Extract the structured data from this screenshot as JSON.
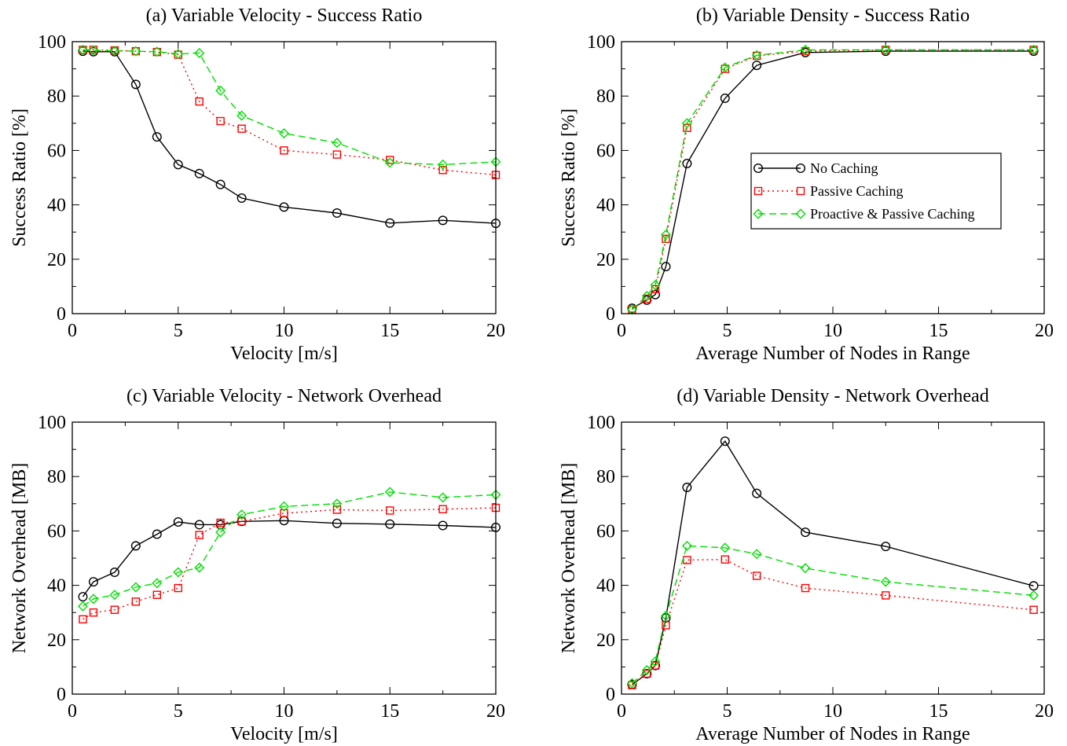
{
  "series_styles": [
    {
      "color": "#000000",
      "dash": "",
      "marker": "circle"
    },
    {
      "color": "#ff0000",
      "dash": "2,4",
      "marker": "square"
    },
    {
      "color": "#00dd00",
      "dash": "9,5",
      "marker": "diamond"
    }
  ],
  "chart_data": [
    {
      "id": "a",
      "type": "line",
      "title": "(a) Variable Velocity - Success Ratio",
      "xlabel": "Velocity [m/s]",
      "ylabel": "Success Ratio [%]",
      "xlim": [
        0,
        20
      ],
      "ylim": [
        0,
        100
      ],
      "xticks": [
        0,
        5,
        10,
        15,
        20
      ],
      "yticks": [
        0,
        20,
        40,
        60,
        80,
        100
      ],
      "grid": false,
      "legend": null,
      "series": [
        {
          "x": [
            0.5,
            1,
            2,
            3,
            4,
            5,
            6,
            7,
            8,
            10,
            12.5,
            15,
            17.5,
            20
          ],
          "values": [
            96.5,
            96.3,
            96.3,
            84.3,
            65,
            54.8,
            51.5,
            47.5,
            42.5,
            39.2,
            37,
            33.3,
            34.3,
            33.2
          ]
        },
        {
          "x": [
            0.5,
            1,
            2,
            3,
            4,
            5,
            6,
            7,
            8,
            10,
            12.5,
            15,
            17.5,
            20
          ],
          "values": [
            97,
            97,
            96.8,
            96.5,
            96.2,
            95.2,
            78,
            70.8,
            68,
            60,
            58.5,
            56.5,
            52.8,
            51
          ]
        },
        {
          "x": [
            0.5,
            1,
            2,
            3,
            4,
            5,
            6,
            7,
            8,
            10,
            12.5,
            15,
            17.5,
            20
          ],
          "values": [
            97,
            96.8,
            96.6,
            96.5,
            96.3,
            95.5,
            95.8,
            82,
            72.8,
            66.3,
            62.8,
            55.5,
            54.8,
            55.8
          ]
        }
      ]
    },
    {
      "id": "b",
      "type": "line",
      "title": "(b) Variable Density - Success Ratio",
      "xlabel": "Average Number of Nodes in Range",
      "ylabel": "Success Ratio [%]",
      "xlim": [
        0,
        20
      ],
      "ylim": [
        0,
        100
      ],
      "xticks": [
        0,
        5,
        10,
        15,
        20
      ],
      "yticks": [
        0,
        20,
        40,
        60,
        80,
        100
      ],
      "grid": false,
      "legend": "center-right",
      "series": [
        {
          "name": "No Caching",
          "x": [
            0.5,
            1.2,
            1.6,
            2.1,
            3.1,
            4.9,
            6.4,
            8.7,
            12.5,
            19.5
          ],
          "values": [
            2,
            5,
            7,
            17.3,
            55.2,
            79.2,
            91.3,
            96,
            96.5,
            96.5
          ]
        },
        {
          "name": "Passive Caching",
          "x": [
            0.5,
            1.2,
            1.6,
            2.1,
            3.1,
            4.9,
            6.4,
            8.7,
            12.5,
            19.5
          ],
          "values": [
            1.5,
            5.5,
            9,
            27.5,
            68.3,
            90,
            94.8,
            96.5,
            97,
            97
          ]
        },
        {
          "name": "Proactive & Passive Caching",
          "x": [
            0.5,
            1.2,
            1.6,
            2.1,
            3.1,
            4.9,
            6.4,
            8.7,
            12.5,
            19.5
          ],
          "values": [
            1.5,
            6.5,
            10.5,
            29,
            70,
            90.5,
            95,
            97,
            97,
            97
          ]
        }
      ]
    },
    {
      "id": "c",
      "type": "line",
      "title": "(c) Variable Velocity - Network Overhead",
      "xlabel": "Velocity [m/s]",
      "ylabel": "Network Overhead [MB]",
      "xlim": [
        0,
        20
      ],
      "ylim": [
        0,
        100
      ],
      "xticks": [
        0,
        5,
        10,
        15,
        20
      ],
      "yticks": [
        0,
        20,
        40,
        60,
        80,
        100
      ],
      "grid": false,
      "legend": null,
      "series": [
        {
          "x": [
            0.5,
            1,
            2,
            3,
            4,
            5,
            6,
            7,
            8,
            10,
            12.5,
            15,
            17.5,
            20
          ],
          "values": [
            35.8,
            41.3,
            44.8,
            54.5,
            58.8,
            63.3,
            62.3,
            62.3,
            63.5,
            63.8,
            62.8,
            62.5,
            62,
            61.3
          ]
        },
        {
          "x": [
            0.5,
            1,
            2,
            3,
            4,
            5,
            6,
            7,
            8,
            10,
            12.5,
            15,
            17.5,
            20
          ],
          "values": [
            27.5,
            30,
            31,
            34,
            36.5,
            39,
            58.5,
            63,
            63.5,
            66.5,
            67.8,
            67.5,
            68,
            68.5
          ]
        },
        {
          "x": [
            0.5,
            1,
            2,
            3,
            4,
            5,
            6,
            7,
            8,
            10,
            12.5,
            15,
            17.5,
            20
          ],
          "values": [
            32.3,
            35,
            36.5,
            39.3,
            40.8,
            44.8,
            46.5,
            59.5,
            66,
            69,
            70,
            74.3,
            72.3,
            73.3
          ]
        }
      ]
    },
    {
      "id": "d",
      "type": "line",
      "title": "(d) Variable Density - Network Overhead",
      "xlabel": "Average Number of Nodes in Range",
      "ylabel": "Network Overhead [MB]",
      "xlim": [
        0,
        20
      ],
      "ylim": [
        0,
        100
      ],
      "xticks": [
        0,
        5,
        10,
        15,
        20
      ],
      "yticks": [
        0,
        20,
        40,
        60,
        80,
        100
      ],
      "grid": false,
      "legend": null,
      "series": [
        {
          "x": [
            0.5,
            1.2,
            1.6,
            2.1,
            3.1,
            4.9,
            6.4,
            8.7,
            12.5,
            19.5
          ],
          "values": [
            3.5,
            7.5,
            10.5,
            28,
            76,
            93,
            73.8,
            59.5,
            54.3,
            39.8
          ]
        },
        {
          "x": [
            0.5,
            1.2,
            1.6,
            2.1,
            3.1,
            4.9,
            6.4,
            8.7,
            12.5,
            19.5
          ],
          "values": [
            3.3,
            7.5,
            10.5,
            25.3,
            49.3,
            49.5,
            43.5,
            39,
            36.3,
            31
          ]
        },
        {
          "x": [
            0.5,
            1.2,
            1.6,
            2.1,
            3.1,
            4.9,
            6.4,
            8.7,
            12.5,
            19.5
          ],
          "values": [
            4,
            8.8,
            12,
            28.8,
            54.5,
            53.8,
            51.5,
            46.3,
            41.3,
            36.3
          ]
        }
      ]
    }
  ]
}
